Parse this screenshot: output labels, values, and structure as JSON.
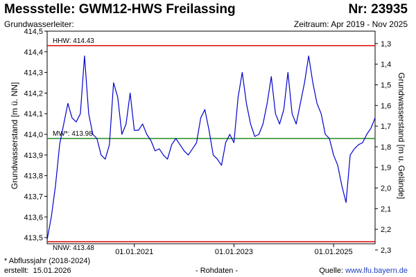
{
  "header": {
    "title": "Messstelle: GWM12-HWS Freilassing",
    "number": "Nr: 23935",
    "subtitle_left": "Grundwasserleiter:",
    "period": "Zeitraum: Apr 2019 - Nov 2025"
  },
  "footer": {
    "footnote": "* Abflussjahr (2018-2024)",
    "created_label": "erstellt:",
    "created_date": "15.01.2026",
    "raw_data": "- Rohdaten -",
    "source_label": "Quelle:",
    "source_url": "www.lfu.bayern.de"
  },
  "colors": {
    "series": "#0000cc",
    "hhw": "#dd0000",
    "nnw": "#dd0000",
    "mw": "#228b22",
    "text": "#000000",
    "link": "#1f3fbf"
  },
  "chart_data": {
    "type": "line",
    "title": "",
    "ylabel": "Grundwasserstand [m ü. NN]",
    "ylabel_right": "Grundwasserstand [m u. Gelände]",
    "ylim": [
      413.47,
      414.5
    ],
    "ylim_right": [
      2.27,
      1.24
    ],
    "y_ticks": [
      "413,5",
      "413,6",
      "413,7",
      "413,8",
      "413,9",
      "414,0",
      "414,1",
      "414,2",
      "414,3",
      "414,4",
      "414,5"
    ],
    "y_ticks_right": [
      "1,3",
      "1,4",
      "1,5",
      "1,6",
      "1,7",
      "1,8",
      "1,9",
      "2,0",
      "2,1",
      "2,2",
      "2,3"
    ],
    "x_ticks": [
      "01.01.2021",
      "01.01.2023",
      "01.01.2025"
    ],
    "xlim": [
      "2019-04",
      "2025-11"
    ],
    "grid": false,
    "reference_lines": [
      {
        "label": "HHW: 414.43",
        "value": 414.43
      },
      {
        "label": "MW*: 413.98",
        "value": 413.98
      },
      {
        "label": "NNW: 413.48",
        "value": 413.48
      }
    ],
    "series": [
      {
        "x": [
          "2019-04",
          "2019-05",
          "2019-06",
          "2019-07",
          "2019-08",
          "2019-09",
          "2019-10",
          "2019-11",
          "2019-12",
          "2020-01",
          "2020-02",
          "2020-03",
          "2020-04",
          "2020-05",
          "2020-06",
          "2020-07",
          "2020-08",
          "2020-09",
          "2020-10",
          "2020-11",
          "2020-12",
          "2021-01",
          "2021-02",
          "2021-03",
          "2021-04",
          "2021-05",
          "2021-06",
          "2021-07",
          "2021-08",
          "2021-09",
          "2021-10",
          "2021-11",
          "2021-12",
          "2022-01",
          "2022-02",
          "2022-03",
          "2022-04",
          "2022-05",
          "2022-06",
          "2022-07",
          "2022-08",
          "2022-09",
          "2022-10",
          "2022-11",
          "2022-12",
          "2023-01",
          "2023-02",
          "2023-03",
          "2023-04",
          "2023-05",
          "2023-06",
          "2023-07",
          "2023-08",
          "2023-09",
          "2023-10",
          "2023-11",
          "2023-12",
          "2024-01",
          "2024-02",
          "2024-03",
          "2024-04",
          "2024-05",
          "2024-06",
          "2024-07",
          "2024-08",
          "2024-09",
          "2024-10",
          "2024-11",
          "2024-12",
          "2025-01",
          "2025-02",
          "2025-03",
          "2025-04",
          "2025-05",
          "2025-06",
          "2025-07",
          "2025-08",
          "2025-09",
          "2025-10",
          "2025-11"
        ],
        "y": [
          413.49,
          413.6,
          413.75,
          413.95,
          414.05,
          414.15,
          414.08,
          414.06,
          414.1,
          414.38,
          414.1,
          414.0,
          413.98,
          413.9,
          413.88,
          413.95,
          414.25,
          414.18,
          414.0,
          414.05,
          414.2,
          414.02,
          414.02,
          414.05,
          414.0,
          413.97,
          413.92,
          413.93,
          413.9,
          413.88,
          413.95,
          413.98,
          413.95,
          413.92,
          413.9,
          413.93,
          413.96,
          414.08,
          414.12,
          414.02,
          413.9,
          413.88,
          413.85,
          413.96,
          414.0,
          413.96,
          414.18,
          414.3,
          414.15,
          414.05,
          413.99,
          414.0,
          414.05,
          414.15,
          414.28,
          414.1,
          414.05,
          414.12,
          414.3,
          414.1,
          414.05,
          414.15,
          414.25,
          414.38,
          414.25,
          414.15,
          414.1,
          414.0,
          413.98,
          413.9,
          413.85,
          413.75,
          413.67,
          413.9,
          413.93,
          413.95,
          413.96,
          414.0,
          414.03,
          414.08
        ]
      }
    ]
  }
}
